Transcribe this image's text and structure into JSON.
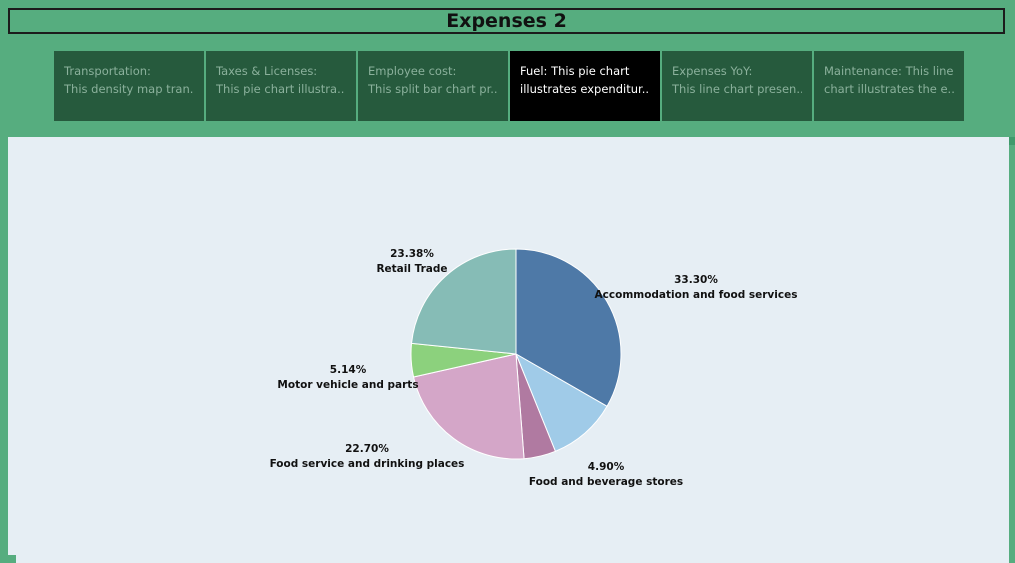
{
  "header": {
    "title": "Expenses 2"
  },
  "tabs": [
    {
      "title": "Transportation:",
      "desc": "This density map tran..",
      "active": false
    },
    {
      "title": "Taxes & Licenses:",
      "desc": "This pie chart  illustra..",
      "active": false
    },
    {
      "title": "Employee cost:",
      "desc": "This split bar chart pr..",
      "active": false
    },
    {
      "title": "Fuel: This pie chart",
      "desc": "illustrates expenditur..",
      "active": true
    },
    {
      "title": "Expenses YoY:",
      "desc": "This line chart presen..",
      "active": false
    },
    {
      "title": "Maintenance: This line",
      "desc": "chart illustrates the e..",
      "active": false
    }
  ],
  "colors": {
    "background": "#56ad7f",
    "tab_bg": "#265a3d",
    "tab_active_bg": "#000000",
    "panel_bg": "#e6eef4"
  },
  "chart_data": {
    "type": "pie",
    "title": "",
    "start_angle_deg": 0,
    "direction": "clockwise",
    "slices": [
      {
        "label": "Accommodation and food services",
        "value": 33.3,
        "display": "33.30%",
        "color": "#4e79a7"
      },
      {
        "label": "",
        "value": 10.58,
        "display": "",
        "color": "#a0cbe8"
      },
      {
        "label": "Food and beverage stores",
        "value": 4.9,
        "display": "4.90%",
        "color": "#b07aa1"
      },
      {
        "label": "Food service and drinking places",
        "value": 22.7,
        "display": "22.70%",
        "color": "#d4a6c8"
      },
      {
        "label": "Motor vehicle and parts",
        "value": 5.14,
        "display": "5.14%",
        "color": "#8cd17d"
      },
      {
        "label": "Retail Trade",
        "value": 23.38,
        "display": "23.38%",
        "color": "#86bcb6"
      }
    ]
  }
}
